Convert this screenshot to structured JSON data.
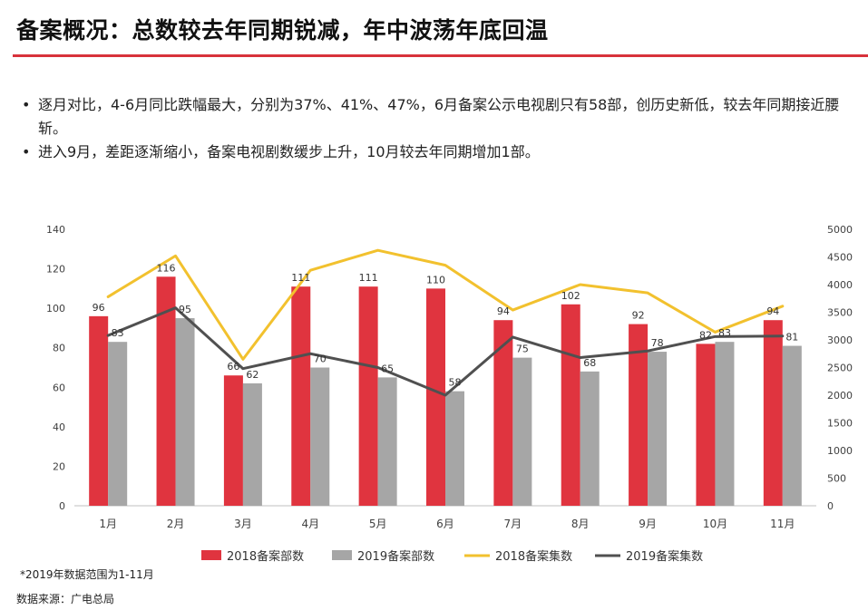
{
  "page": {
    "title": "备案概况：总数较去年同期锐减，年中波荡年底回温",
    "bullets": [
      "逐月对比，4-6月同比跌幅最大，分别为37%、41%、47%，6月备案公示电视剧只有58部，创历史新低，较去年同期接近腰斩。",
      "进入9月，差距逐渐缩小，备案电视剧数缓步上升，10月较去年同期增加1部。"
    ],
    "bullet_glyph": "•",
    "footnote": "*2019年数据范围为1-11月",
    "source": "数据来源：广电总局"
  },
  "chart_data": {
    "type": "bar",
    "categories": [
      "1月",
      "2月",
      "3月",
      "4月",
      "5月",
      "6月",
      "7月",
      "8月",
      "9月",
      "10月",
      "11月"
    ],
    "left_axis": {
      "ylim": [
        0,
        140
      ],
      "ticks": [
        "0",
        "20",
        "40",
        "60",
        "80",
        "100",
        "120",
        "140"
      ]
    },
    "right_axis": {
      "ylim": [
        0,
        5000
      ],
      "ticks": [
        "0",
        "500",
        "1000",
        "1500",
        "2000",
        "2500",
        "3000",
        "3500",
        "4000",
        "4500",
        "5000"
      ]
    },
    "series": [
      {
        "name": "2018备案部数",
        "kind": "bar",
        "axis": "left",
        "color": "#e0343f",
        "values": [
          96,
          116,
          66,
          111,
          111,
          110,
          94,
          102,
          92,
          82,
          94
        ],
        "labels": [
          "96",
          "116",
          "66",
          "111",
          "111",
          "110",
          "94",
          "102",
          "92",
          "82",
          "94"
        ]
      },
      {
        "name": "2019备案部数",
        "kind": "bar",
        "axis": "left",
        "color": "#a6a6a6",
        "values": [
          83,
          95,
          62,
          70,
          65,
          58,
          75,
          68,
          78,
          83,
          81
        ],
        "labels": [
          "83",
          "95",
          "62",
          "70",
          "65",
          "58",
          "75",
          "68",
          "78",
          "83",
          "81"
        ]
      },
      {
        "name": "2018备案集数",
        "kind": "line",
        "axis": "right",
        "color": "#f2c12e",
        "values": [
          3780,
          4520,
          2650,
          4260,
          4620,
          4350,
          3540,
          4000,
          3850,
          3140,
          3610
        ]
      },
      {
        "name": "2019备案集数",
        "kind": "line",
        "axis": "right",
        "color": "#505050",
        "values": [
          3080,
          3580,
          2480,
          2750,
          2500,
          2000,
          3050,
          2680,
          2800,
          3060,
          3070
        ]
      }
    ],
    "legend": "bottom",
    "grid": false
  }
}
